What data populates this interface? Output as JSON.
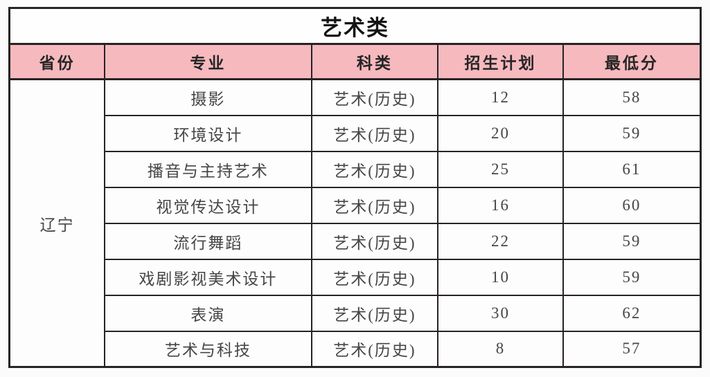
{
  "table": {
    "title": "艺术类",
    "columns": {
      "province": "省份",
      "major": "专业",
      "category": "科类",
      "plan": "招生计划",
      "min_score": "最低分"
    },
    "province": "辽宁",
    "rows": [
      {
        "major": "摄影",
        "category": "艺术(历史)",
        "plan": "12",
        "min_score": "58"
      },
      {
        "major": "环境设计",
        "category": "艺术(历史)",
        "plan": "20",
        "min_score": "59"
      },
      {
        "major": "播音与主持艺术",
        "category": "艺术(历史)",
        "plan": "25",
        "min_score": "61"
      },
      {
        "major": "视觉传达设计",
        "category": "艺术(历史)",
        "plan": "16",
        "min_score": "60"
      },
      {
        "major": "流行舞蹈",
        "category": "艺术(历史)",
        "plan": "22",
        "min_score": "59"
      },
      {
        "major": "戏剧影视美术设计",
        "category": "艺术(历史)",
        "plan": "10",
        "min_score": "59"
      },
      {
        "major": "表演",
        "category": "艺术(历史)",
        "plan": "30",
        "min_score": "62"
      },
      {
        "major": "艺术与科技",
        "category": "艺术(历史)",
        "plan": "8",
        "min_score": "57"
      }
    ]
  },
  "colors": {
    "header_bg": "#f6b9be",
    "border": "#272225",
    "page_bg": "#fbfbfb"
  }
}
